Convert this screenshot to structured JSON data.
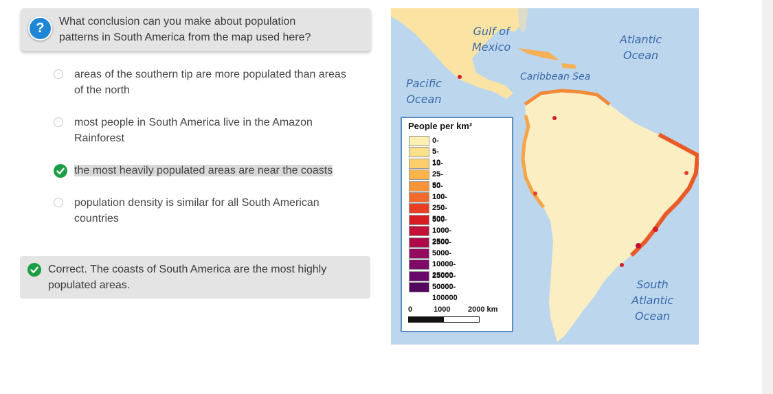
{
  "question": {
    "icon": "question-icon",
    "icon_glyph": "?",
    "text": "What conclusion can you make about population patterns in South America from the map used here?"
  },
  "options": [
    {
      "text": "areas of the southern tip are more populated than areas of the north",
      "selected": false
    },
    {
      "text": "most people in South America live in the Amazon Rainforest",
      "selected": false
    },
    {
      "text": "the most heavily populated areas are near the coasts",
      "selected": true
    },
    {
      "text": "population density is similar for all South American countries",
      "selected": false
    }
  ],
  "feedback": {
    "icon": "check-icon",
    "text": "Correct. The coasts of South America are the most highly populated areas."
  },
  "map": {
    "labels": {
      "gulf": "Gulf of\nMexico",
      "atlantic": "Atlantic\nOcean",
      "caribbean": "Caribbean Sea",
      "pacific": "Pacific\nOcean",
      "south_atlantic": "South\nAtlantic\nOcean"
    },
    "legend": {
      "title": "People per km²",
      "items": [
        {
          "label": "0-5",
          "color": "#fdf0b0"
        },
        {
          "label": "5-10",
          "color": "#fde08a"
        },
        {
          "label": "10-25",
          "color": "#fccf6a"
        },
        {
          "label": "25-50",
          "color": "#fbb34c"
        },
        {
          "label": "50-100",
          "color": "#f8953a"
        },
        {
          "label": "100-250",
          "color": "#f26a2c"
        },
        {
          "label": "250-500",
          "color": "#e93e24"
        },
        {
          "label": "500-1000",
          "color": "#d81c24"
        },
        {
          "label": "1000-2500",
          "color": "#c21038"
        },
        {
          "label": "2500-5000",
          "color": "#ad0a4a"
        },
        {
          "label": "5000-10000",
          "color": "#940a5c"
        },
        {
          "label": "10000-25000",
          "color": "#7e0a66"
        },
        {
          "label": "25000-50000",
          "color": "#68086a"
        },
        {
          "label": "50000-100000",
          "color": "#52065e"
        }
      ],
      "scale": {
        "start": "0",
        "mid": "1000",
        "end": "2000 km"
      }
    }
  },
  "colors": {
    "ocean": "#bcd6ee",
    "land": "#fbeec3",
    "check_green": "#1e9e44",
    "question_blue": "#1f86d5"
  }
}
